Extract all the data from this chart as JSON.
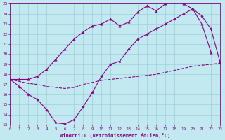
{
  "xlabel": "Windchill (Refroidissement éolien,°C)",
  "bg_color": "#c2e8f0",
  "grid_color": "#9dcfdc",
  "line_color": "#880088",
  "xlim": [
    0,
    23
  ],
  "ylim": [
    13,
    25
  ],
  "xticks": [
    0,
    1,
    2,
    3,
    4,
    5,
    6,
    7,
    8,
    9,
    10,
    11,
    12,
    13,
    14,
    15,
    16,
    17,
    18,
    19,
    20,
    21,
    22,
    23
  ],
  "yticks": [
    13,
    14,
    15,
    16,
    17,
    18,
    19,
    20,
    21,
    22,
    23,
    24,
    25
  ],
  "curve1_x": [
    0,
    1,
    2,
    3,
    4,
    5,
    6,
    7,
    8,
    9,
    10,
    11,
    12,
    13,
    14,
    15,
    16,
    17,
    18,
    19,
    20,
    21,
    22,
    23
  ],
  "curve1_y": [
    17.5,
    17.3,
    17.1,
    17.0,
    16.8,
    16.7,
    16.6,
    16.7,
    17.0,
    17.2,
    17.4,
    17.5,
    17.6,
    17.7,
    17.8,
    17.9,
    18.0,
    18.2,
    18.4,
    18.6,
    18.8,
    18.9,
    19.0,
    19.1
  ],
  "curve2_x": [
    0,
    1,
    2,
    3,
    4,
    5,
    6,
    7,
    8,
    9,
    10,
    11,
    12,
    13,
    14,
    15,
    16,
    17,
    18,
    19,
    20,
    21,
    22,
    23
  ],
  "curve2_y": [
    17.5,
    16.8,
    16.0,
    15.5,
    14.5,
    13.2,
    13.1,
    13.5,
    14.8,
    16.2,
    17.8,
    19.0,
    19.3,
    20.5,
    21.5,
    22.0,
    22.5,
    23.0,
    23.5,
    24.0,
    24.5,
    23.8,
    22.5,
    19.2
  ],
  "curve3_x": [
    0,
    1,
    2,
    3,
    4,
    5,
    6,
    7,
    8,
    9,
    10,
    11,
    12,
    13,
    14,
    15,
    16,
    17,
    18,
    19,
    20,
    21,
    22
  ],
  "curve3_y": [
    17.5,
    17.5,
    17.5,
    17.8,
    18.5,
    19.5,
    20.5,
    21.5,
    22.2,
    22.8,
    23.0,
    23.5,
    22.8,
    23.2,
    24.2,
    24.8,
    24.3,
    25.0,
    25.2,
    25.0,
    24.5,
    23.0,
    20.2
  ]
}
